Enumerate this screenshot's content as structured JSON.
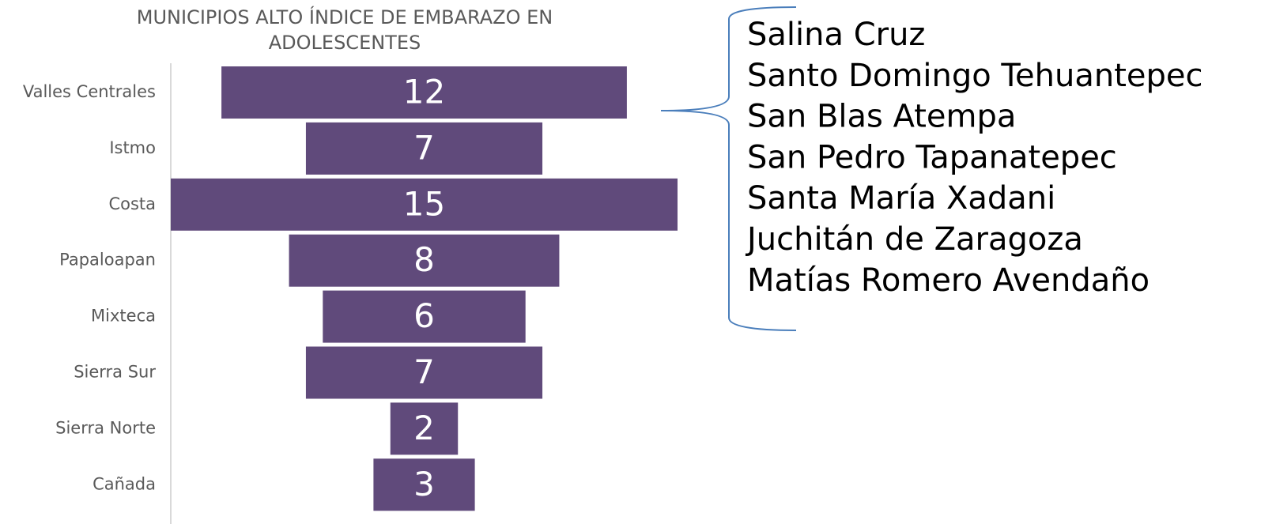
{
  "chart_data": {
    "type": "funnel",
    "title": "MUNICIPIOS ALTO ÍNDICE DE EMBARAZO EN ADOLESCENTES",
    "categories": [
      "Valles Centrales",
      "Istmo",
      "Costa",
      "Papaloapan",
      "Mixteca",
      "Sierra Sur",
      "Sierra Norte",
      "Cañada"
    ],
    "values": [
      12,
      7,
      15,
      8,
      6,
      7,
      2,
      3
    ],
    "color": "#604a7b",
    "annotations": [
      "Salina Cruz",
      "Santo Domingo Tehuantepec",
      "San Blas Atempa",
      "San Pedro Tapanatepec",
      "Santa María Xadani",
      "Juchitán de Zaragoza",
      "Matías Romero Avendaño"
    ]
  }
}
